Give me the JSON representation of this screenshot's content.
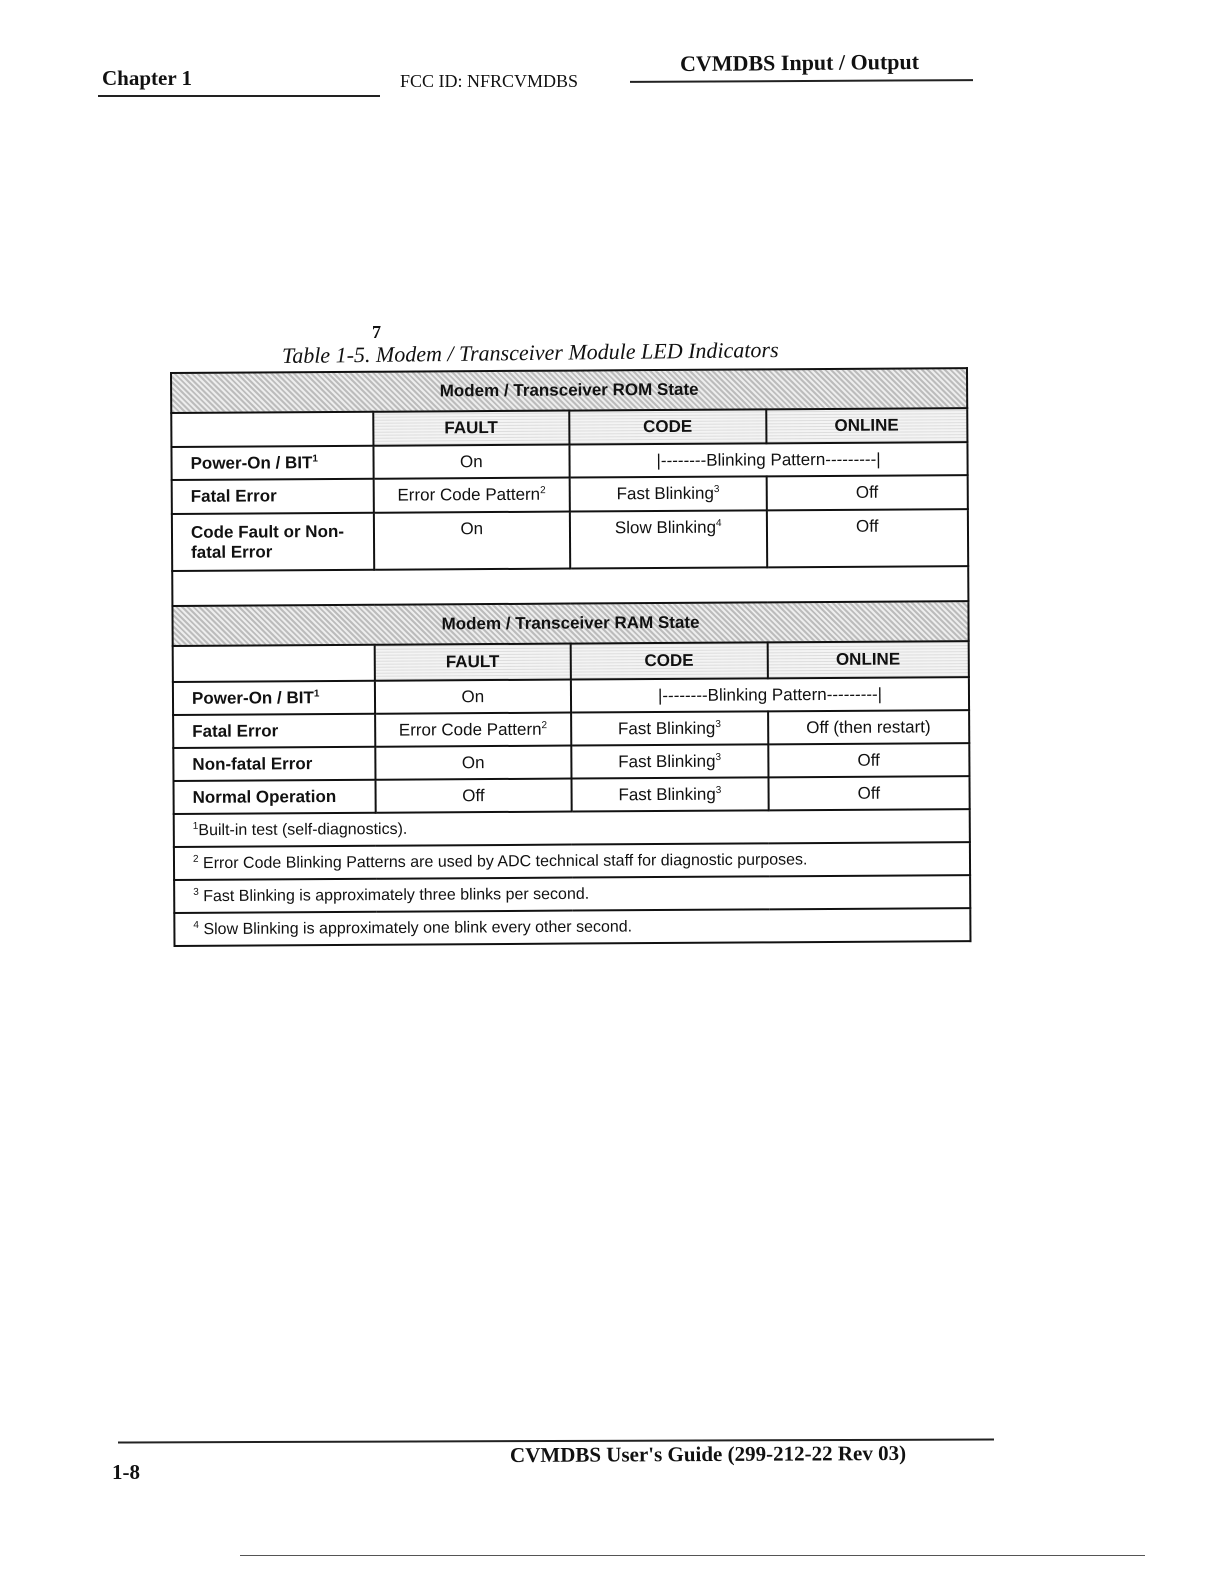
{
  "header": {
    "chapter": "Chapter 1",
    "fcc_id": "FCC ID: NFRCVMDBS",
    "section": "CVMDBS Input / Output"
  },
  "table": {
    "title": "Table 1-5. Modem / Transceiver Module LED Indicators",
    "handwritten_note": "7",
    "columns": [
      "FAULT",
      "CODE",
      "ONLINE"
    ],
    "rom": {
      "heading": "Modem / Transceiver ROM State",
      "rows": [
        {
          "label": "Power-On / BIT",
          "sup": "1",
          "fault": "On",
          "span": "|--------Blinking Pattern---------|"
        },
        {
          "label": "Fatal Error",
          "fault": "Error Code Pattern",
          "fault_sup": "2",
          "code": "Fast Blinking",
          "code_sup": "3",
          "online": "Off"
        },
        {
          "label": "Code Fault or Non-fatal Error",
          "fault": "On",
          "code": "Slow Blinking",
          "code_sup": "4",
          "online": "Off"
        }
      ]
    },
    "ram": {
      "heading": "Modem / Transceiver RAM State",
      "rows": [
        {
          "label": "Power-On / BIT",
          "sup": "1",
          "fault": "On",
          "span": "|--------Blinking Pattern---------|"
        },
        {
          "label": "Fatal Error",
          "fault": "Error Code Pattern",
          "fault_sup": "2",
          "code": "Fast Blinking",
          "code_sup": "3",
          "online": "Off  (then restart)"
        },
        {
          "label": "Non-fatal Error",
          "fault": "On",
          "code": "Fast Blinking",
          "code_sup": "3",
          "online": "Off"
        },
        {
          "label": "Normal Operation",
          "fault": "Off",
          "code": "Fast Blinking",
          "code_sup": "3",
          "online": "Off"
        }
      ]
    },
    "footnotes": [
      {
        "mark": "1",
        "text": "Built-in test (self-diagnostics)."
      },
      {
        "mark": "2",
        "text": "Error Code Blinking Patterns are used by ADC technical staff for diagnostic purposes."
      },
      {
        "mark": "3",
        "text": "Fast Blinking is approximately three blinks per second."
      },
      {
        "mark": "4",
        "text": "Slow Blinking is approximately one blink every other second."
      }
    ]
  },
  "footer": {
    "page": "1-8",
    "guide": "CVMDBS User's Guide (299-212-22 Rev 03)"
  }
}
